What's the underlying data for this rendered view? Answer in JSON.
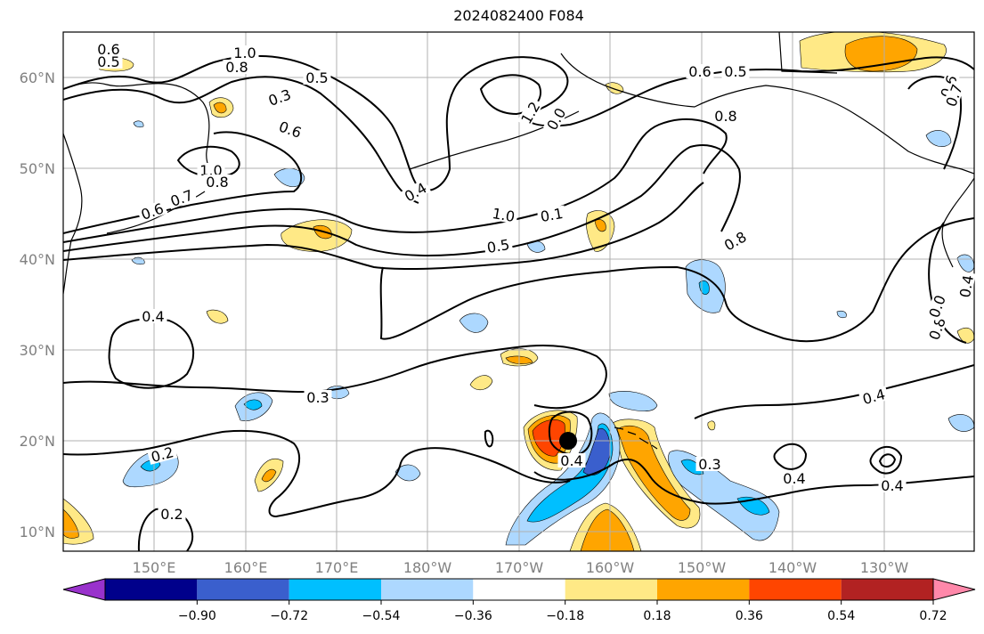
{
  "title": "2024082400 F084",
  "lat_labels": [
    "60°N",
    "50°N",
    "40°N",
    "30°N",
    "20°N",
    "10°N"
  ],
  "lon_labels": [
    "150°E",
    "160°E",
    "170°E",
    "180°W",
    "170°W",
    "160°W",
    "150°W",
    "140°W",
    "130°W"
  ],
  "contour_labels": [
    "1.0",
    "0.8",
    "0.5",
    "0.3",
    "0.6",
    "0.5",
    "0.6",
    "1.0",
    "0.8",
    "0.6",
    "0.7",
    "0.4",
    "1.2",
    "0.0",
    "1.0",
    "0.5",
    "0.1",
    "0.6",
    "0.5",
    "0.8",
    "0.8",
    "0.6",
    "0.7",
    "0.4",
    "0.4",
    "0.3",
    "0.2",
    "0.2",
    "0.4",
    "0.3",
    "0.4",
    "0.4",
    "0.4",
    "0.8",
    "0.0"
  ],
  "colorbar": {
    "ticks": [
      "−0.90",
      "−0.72",
      "−0.54",
      "−0.36",
      "−0.18",
      "0.18",
      "0.36",
      "0.54",
      "0.72",
      "0.90"
    ],
    "colors": [
      "#9932CC",
      "#00008B",
      "#3A5FCD",
      "#00BFFF",
      "#ADD8FF",
      "#FFFFFF",
      "#FFE986",
      "#FFA500",
      "#FF4500",
      "#B22222",
      "#FF88AA"
    ]
  },
  "colors": {
    "pos_light": "#FFE986",
    "pos_mid": "#FFA500",
    "pos_strong": "#FF4500",
    "neg_light": "#ADD8FF",
    "neg_mid": "#00BFFF",
    "neg_strong": "#3A5FCD",
    "grid": "#B0B0B0"
  }
}
